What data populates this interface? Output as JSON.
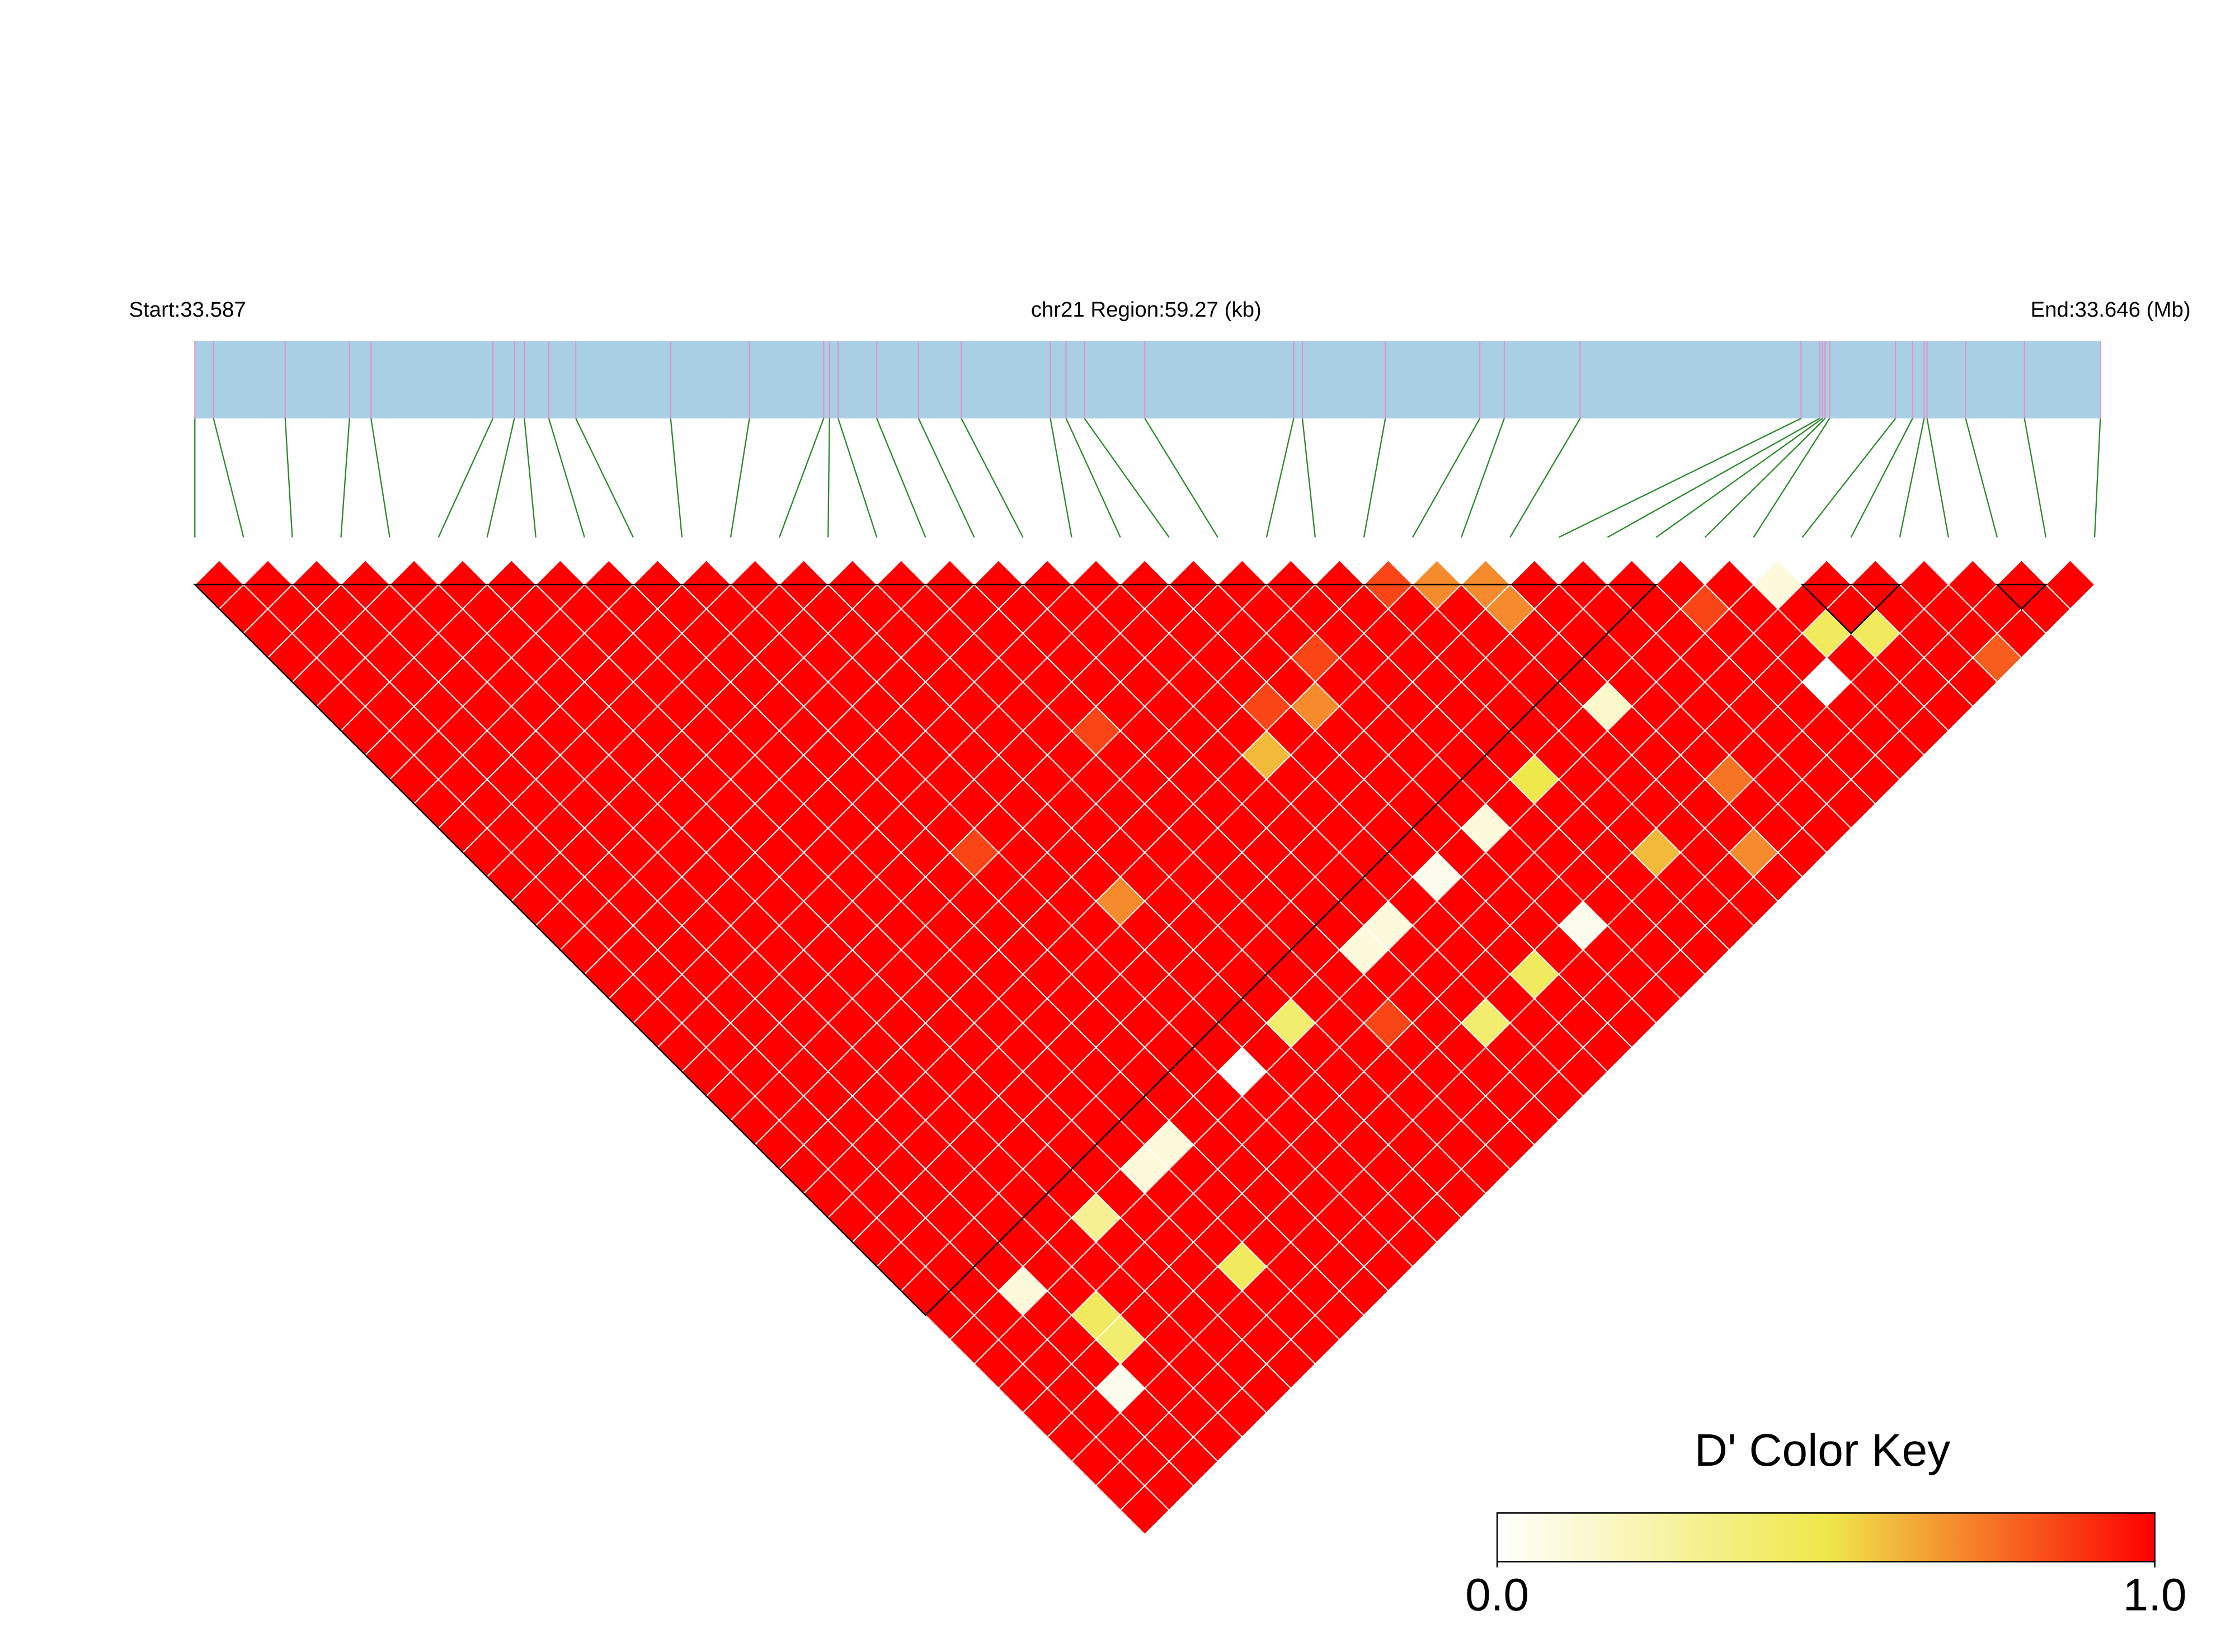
{
  "chart_data": {
    "type": "ld_heatmap",
    "start_label": "Start:33.587",
    "region_label": "chr21 Region:59.27 (kb)",
    "end_label": "End:33.646 (Mb)",
    "xlim": [
      33.587,
      33.64627
    ],
    "snp_positions": [
      33.587,
      33.58758,
      33.58981,
      33.59181,
      33.59248,
      33.59627,
      33.59694,
      33.59725,
      33.59801,
      33.59885,
      33.6018,
      33.60425,
      33.60656,
      33.60674,
      33.60701,
      33.60821,
      33.60951,
      33.61084,
      33.61361,
      33.6141,
      33.61467,
      33.61655,
      33.62118,
      33.62145,
      33.62403,
      33.62697,
      33.62773,
      33.63009,
      33.63696,
      33.63754,
      33.63763,
      33.63771,
      33.63785,
      33.6399,
      33.64043,
      33.64079,
      33.64088,
      33.64208,
      33.64391,
      33.64627
    ],
    "bar_color": "#a9cfe4",
    "marker_color": "#e58fc4",
    "connector_color": "#2a8a2a",
    "block_color": "#000000",
    "ld_blocks": [
      [
        1,
        31
      ],
      [
        34,
        36
      ],
      [
        38,
        39
      ]
    ],
    "colors": [
      "#ffffff",
      "#efe84a",
      "#ff0000"
    ],
    "dprime": [
      [
        1,
        1,
        1,
        1,
        1,
        1,
        1,
        1,
        1,
        1,
        1,
        1,
        1,
        1,
        1,
        1,
        1,
        1,
        1,
        1,
        1,
        1,
        1,
        1,
        1,
        1,
        1,
        1,
        1,
        1,
        1,
        1,
        1,
        1,
        1,
        1,
        1,
        1,
        1
      ],
      [
        1,
        1,
        1,
        1,
        1,
        1,
        1,
        1,
        1,
        1,
        1,
        1,
        1,
        1,
        1,
        1,
        1,
        1,
        1,
        1,
        1,
        1,
        1,
        1,
        1,
        1,
        1,
        1,
        1,
        1,
        1,
        1,
        1,
        1,
        1,
        1,
        1,
        1
      ],
      [
        1,
        1,
        1,
        1,
        1,
        1,
        1,
        1,
        1,
        1,
        1,
        1,
        1,
        1,
        1,
        1,
        1,
        1,
        1,
        1,
        1,
        1,
        1,
        1,
        1,
        1,
        1,
        1,
        1,
        0.1,
        1,
        1,
        1,
        0.05,
        1,
        1,
        1
      ],
      [
        1,
        1,
        1,
        1,
        1,
        1,
        1,
        1,
        1,
        1,
        1,
        1,
        1,
        1,
        1,
        1,
        1,
        1,
        1,
        1,
        1,
        1,
        1,
        1,
        1,
        1,
        1,
        1,
        1,
        1,
        0.45,
        0.4,
        1,
        1,
        1,
        1
      ],
      [
        1,
        1,
        1,
        1,
        1,
        1,
        1,
        1,
        1,
        1,
        1,
        1,
        1,
        1,
        1,
        1,
        1,
        1,
        1,
        1,
        1,
        1,
        1,
        1,
        1,
        1,
        1,
        1,
        1,
        1,
        1,
        1,
        1,
        1,
        1
      ],
      [
        1,
        1,
        1,
        1,
        1,
        1,
        1,
        1,
        1,
        1,
        1,
        1,
        1,
        1,
        1,
        1,
        1,
        1,
        1,
        1,
        1,
        1,
        1,
        1,
        1,
        1,
        0.3,
        1,
        1,
        1,
        1,
        1,
        1,
        1
      ],
      [
        1,
        1,
        1,
        1,
        1,
        1,
        1,
        1,
        1,
        1,
        1,
        1,
        1,
        1,
        1,
        1,
        1,
        1,
        1,
        1,
        1,
        1,
        1,
        1,
        1,
        1,
        1,
        1,
        1,
        1,
        1,
        1,
        1
      ],
      [
        1,
        1,
        1,
        1,
        1,
        1,
        1,
        1,
        1,
        1,
        1,
        1,
        1,
        1,
        1,
        1,
        1,
        1,
        1,
        1,
        1,
        1,
        1,
        1,
        0.1,
        1,
        1,
        1,
        0.45,
        1,
        1,
        1
      ],
      [
        1,
        1,
        1,
        1,
        1,
        1,
        1,
        1,
        1,
        1,
        1,
        1,
        1,
        1,
        1,
        1,
        1,
        1,
        1,
        1,
        1,
        1,
        1,
        0.1,
        1,
        1,
        1,
        1,
        1,
        1,
        1
      ],
      [
        1,
        1,
        1,
        1,
        1,
        1,
        1,
        1,
        1,
        1,
        1,
        1,
        1,
        1,
        1,
        1,
        1,
        1,
        1,
        1,
        1,
        1,
        1,
        1,
        1,
        1,
        1,
        1,
        1,
        1
      ],
      [
        1,
        1,
        1,
        1,
        1,
        1,
        1,
        1,
        1,
        1,
        1,
        0.85,
        1,
        1,
        1,
        1,
        1,
        1,
        1,
        1,
        1,
        1,
        1,
        1,
        1,
        1,
        1,
        1,
        1
      ],
      [
        1,
        1,
        1,
        1,
        1,
        1,
        1,
        1,
        1,
        1,
        1,
        1,
        1,
        1,
        1,
        1,
        1,
        1,
        1,
        1,
        0,
        1,
        1,
        1,
        1,
        1,
        1,
        1
      ],
      [
        1,
        1,
        1,
        1,
        1,
        1,
        1,
        1,
        1,
        1,
        1,
        1,
        1,
        0.7,
        1,
        1,
        1,
        1,
        1,
        1,
        1,
        1,
        1,
        1,
        1,
        1,
        1
      ],
      [
        1,
        1,
        1,
        1,
        1,
        1,
        1,
        1,
        1,
        1,
        1,
        1,
        1,
        1,
        1,
        1,
        1,
        1,
        0.4,
        1,
        1,
        1,
        1,
        1,
        1,
        1
      ],
      [
        1,
        1,
        1,
        1,
        1,
        1,
        1,
        1,
        1,
        1,
        1,
        1,
        1,
        1,
        1,
        1,
        1,
        1,
        1,
        1,
        1,
        1,
        1,
        1,
        1
      ],
      [
        1,
        1,
        1,
        1,
        1,
        1,
        0.85,
        1,
        1,
        1,
        1,
        1,
        1,
        1,
        1,
        1,
        1,
        1,
        0.85,
        1,
        1,
        1,
        1,
        1
      ],
      [
        1,
        1,
        1,
        1,
        1,
        1,
        1,
        1,
        1,
        1,
        1,
        1,
        1,
        1,
        1,
        0.1,
        1,
        1,
        1,
        1,
        1,
        1,
        1
      ],
      [
        1,
        1,
        1,
        1,
        1,
        1,
        1,
        1,
        1,
        1,
        1,
        1,
        1,
        1,
        0.1,
        1,
        1,
        1,
        0.4,
        1,
        1,
        1
      ],
      [
        1,
        1,
        1,
        1,
        1,
        1,
        1,
        0.6,
        1,
        1,
        1,
        1,
        1,
        1,
        1,
        1,
        1,
        1,
        1,
        1,
        1
      ],
      [
        1,
        1,
        1,
        1,
        1,
        0.85,
        1,
        1,
        1,
        1,
        1,
        1,
        0.05,
        1,
        1,
        1,
        0.45,
        1,
        1,
        1
      ],
      [
        1,
        1,
        1,
        1,
        1,
        0.7,
        1,
        1,
        1,
        1,
        1,
        1,
        1,
        1,
        1,
        1,
        1,
        1,
        1
      ],
      [
        1,
        1,
        1,
        0.85,
        1,
        1,
        1,
        1,
        1,
        1,
        0.1,
        1,
        1,
        1,
        0.05,
        1,
        1,
        1
      ],
      [
        1,
        1,
        1,
        1,
        1,
        1,
        1,
        1,
        1,
        1,
        1,
        1,
        1,
        1,
        1,
        1,
        1
      ],
      [
        1,
        1,
        1,
        1,
        1,
        1,
        1,
        1,
        0.5,
        1,
        1,
        1,
        1,
        1,
        1,
        1
      ],
      [
        0.85,
        1,
        1,
        1,
        1,
        1,
        1,
        1,
        1,
        1,
        1,
        0.6,
        1,
        1,
        1
      ],
      [
        0.7,
        1,
        1,
        1,
        1,
        1,
        1,
        1,
        1,
        1,
        1,
        1,
        1,
        1
      ],
      [
        0.7,
        0.7,
        1,
        1,
        1,
        0.15,
        1,
        1,
        1,
        1,
        1,
        0.7,
        1
      ],
      [
        1,
        1,
        1,
        1,
        1,
        1,
        1,
        1,
        0.75,
        1,
        1,
        1
      ],
      [
        1,
        1,
        1,
        1,
        1,
        1,
        1,
        1,
        1,
        1,
        1
      ],
      [
        1,
        1,
        1,
        1,
        1,
        1,
        1,
        1,
        1,
        1
      ],
      [
        1,
        0.85,
        1,
        1,
        1,
        1,
        1,
        1,
        1
      ],
      [
        1,
        1,
        1,
        1,
        0,
        1,
        1,
        1
      ],
      [
        0.1,
        1,
        0.45,
        1,
        1,
        1,
        1
      ],
      [
        1,
        1,
        0.45,
        1,
        1,
        1
      ],
      [
        1,
        1,
        1,
        1,
        1
      ],
      [
        1,
        1,
        1,
        0.8
      ],
      [
        1,
        1,
        1
      ],
      [
        1,
        1
      ],
      [
        1
      ]
    ],
    "key_title": "D' Color Key",
    "key_lim": [
      0,
      1
    ],
    "key_ticks": [
      {
        "value": 0,
        "label": "0.0"
      },
      {
        "value": 1,
        "label": "1.0"
      }
    ]
  }
}
